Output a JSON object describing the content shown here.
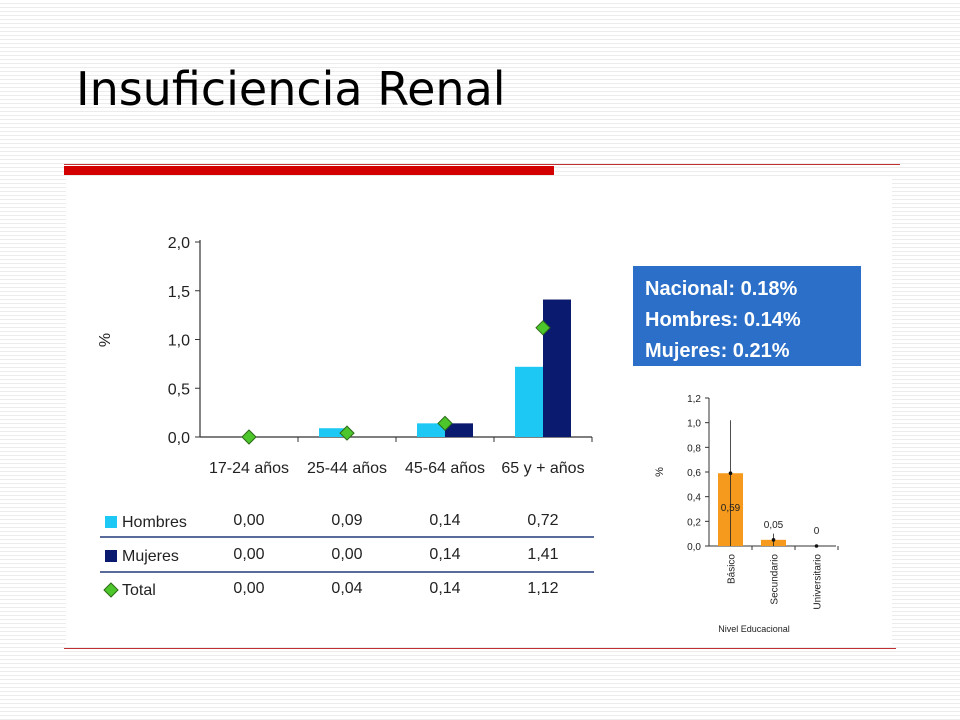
{
  "slide": {
    "title": "Insuficiencia Renal"
  },
  "info_box": {
    "lines": [
      "Nacional: 0.18%",
      "Hombres: 0.14%",
      "Mujeres:  0.21%"
    ]
  },
  "colors": {
    "hombres": "#1ec8f4",
    "mujeres": "#0a1a6e",
    "total_marker": "#4cc62a",
    "total_marker_border": "#2c6a18",
    "orange_bar": "#f59a1c",
    "info_box": "#2b6fc8",
    "accent_red": "#d40000"
  },
  "chart_data": [
    {
      "type": "bar",
      "ylabel": "%",
      "ylim": [
        0,
        2.0
      ],
      "yticks": [
        "0,0",
        "0,5",
        "1,0",
        "1,5",
        "2,0"
      ],
      "ytick_values": [
        0,
        0.5,
        1.0,
        1.5,
        2.0
      ],
      "categories": [
        "17-24 años",
        "25-44 años",
        "45-64 años",
        "65 y + años"
      ],
      "series": [
        {
          "name": "Hombres",
          "kind": "bar",
          "values": [
            0.0,
            0.09,
            0.14,
            0.72
          ],
          "labels": [
            "0,00",
            "0,09",
            "0,14",
            "0,72"
          ],
          "legend_marker": "square"
        },
        {
          "name": "Mujeres",
          "kind": "bar",
          "values": [
            0.0,
            0.0,
            0.14,
            1.41
          ],
          "labels": [
            "0,00",
            "0,00",
            "0,14",
            "1,41"
          ],
          "legend_marker": "square"
        },
        {
          "name": "Total",
          "kind": "marker",
          "values": [
            0.0,
            0.04,
            0.14,
            1.12
          ],
          "labels": [
            "0,00",
            "0,04",
            "0,14",
            "1,12"
          ],
          "legend_marker": "diamond"
        }
      ],
      "table": true,
      "grid": false
    },
    {
      "type": "bar",
      "ylabel": "%",
      "xlabel": "Nivel Educacional",
      "ylim": [
        0,
        1.2
      ],
      "yticks": [
        "0,0",
        "0,2",
        "0,4",
        "0,6",
        "0,8",
        "1,0",
        "1,2"
      ],
      "ytick_values": [
        0,
        0.2,
        0.4,
        0.6,
        0.8,
        1.0,
        1.2
      ],
      "categories": [
        "Básico",
        "Secundario",
        "Universitario"
      ],
      "values": [
        0.59,
        0.05,
        0
      ],
      "value_labels": [
        "0,59",
        "0,05",
        "0"
      ],
      "error_bars": [
        [
          0.0,
          1.02
        ],
        [
          0.0,
          0.1
        ],
        [
          0,
          0
        ]
      ],
      "grid": false
    }
  ]
}
